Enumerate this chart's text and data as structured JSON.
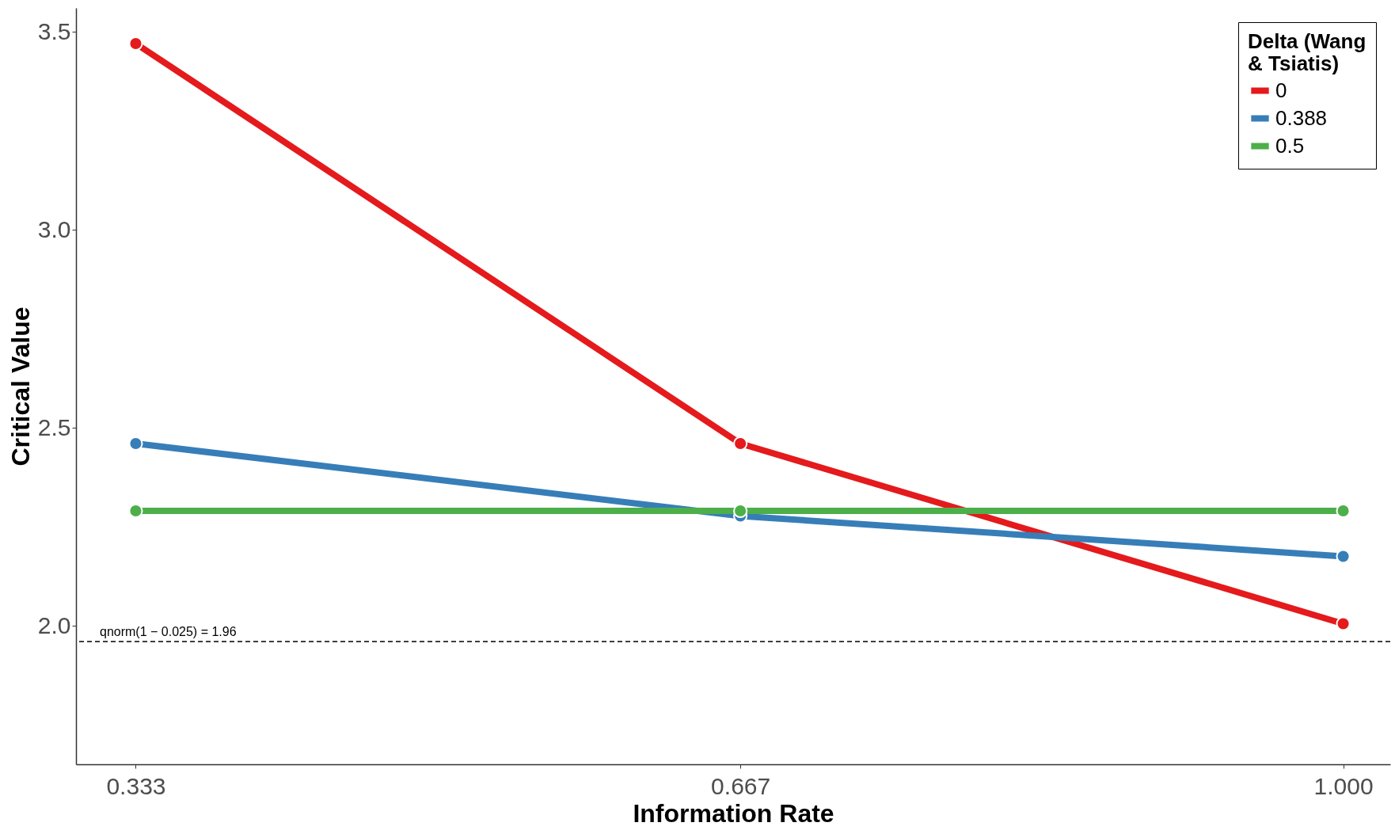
{
  "chart_data": {
    "type": "line",
    "xlabel": "Information Rate",
    "ylabel": "Critical Value",
    "legend_title": "Delta (Wang & Tsiatis)",
    "x": [
      0.333,
      0.667,
      1.0
    ],
    "series": [
      {
        "name": "0",
        "color": "#e41a1c",
        "values": [
          3.47,
          2.46,
          2.005
        ]
      },
      {
        "name": "0.388",
        "color": "#377eb8",
        "values": [
          2.46,
          2.277,
          2.175
        ]
      },
      {
        "name": "0.5",
        "color": "#4daf4a",
        "values": [
          2.29,
          2.29,
          2.29
        ]
      }
    ],
    "xlim": [
      0.3,
      1.026
    ],
    "xticks": [
      0.333,
      0.667,
      {
        "value": 1.0,
        "label": "1.000"
      }
    ],
    "ylim": [
      1.65,
      3.56
    ],
    "yticks": [
      {
        "value": 2.0,
        "label": "2.0"
      },
      2.5,
      {
        "value": 3.0,
        "label": "3.0"
      },
      3.5
    ],
    "ref_lines": [
      {
        "axis": "y",
        "value": 1.96,
        "label": "qnorm(1 − 0.025) = 1.96",
        "color": "#000000",
        "line_style": "dashed"
      }
    ],
    "grid": false,
    "legend": "top right",
    "marker": "circle",
    "line_style": "solid"
  }
}
